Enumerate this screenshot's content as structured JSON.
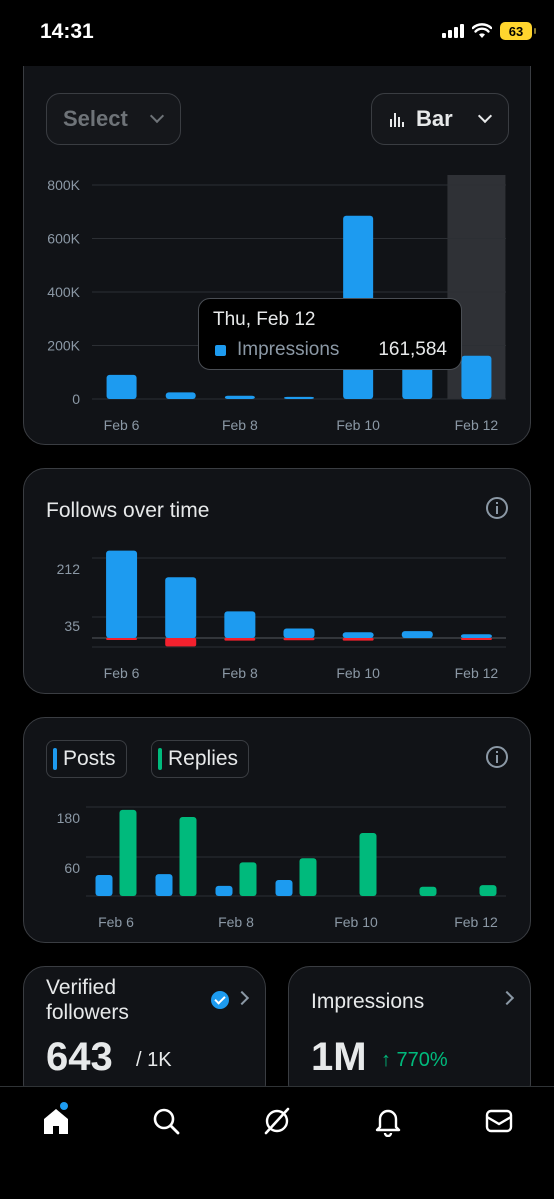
{
  "status_bar": {
    "time": "14:31",
    "battery": "63"
  },
  "impressions_card": {
    "select_label": "Select",
    "chart_type_label": "Bar",
    "tooltip": {
      "date": "Thu, Feb 12",
      "label": "Impressions",
      "value": "161,584"
    }
  },
  "follows_card": {
    "title": "Follows over time"
  },
  "posts_card": {
    "legend_posts": "Posts",
    "legend_replies": "Replies"
  },
  "verified_card": {
    "title": "Verified followers",
    "value": "643",
    "of": "/ 1K"
  },
  "impressions_stat": {
    "title": "Impressions",
    "value": "1M",
    "delta": "↑ 770%"
  },
  "colors": {
    "blue": "#1d9bf0",
    "green": "#00ba7c",
    "red": "#f4212e"
  },
  "chart_data": [
    {
      "type": "bar",
      "categories": [
        "Feb 6",
        "Feb 7",
        "Feb 8",
        "Feb 9",
        "Feb 10",
        "Feb 11",
        "Feb 12"
      ],
      "x_tick_labels": [
        "Feb 6",
        "Feb 8",
        "Feb 10",
        "Feb 12"
      ],
      "y_tick_labels": [
        "800K",
        "600K",
        "400K",
        "200K",
        "0"
      ],
      "series": [
        {
          "name": "Impressions",
          "values": [
            90000,
            25000,
            12000,
            8000,
            685000,
            165000,
            161584
          ]
        }
      ],
      "ylim": [
        0,
        800000
      ],
      "highlighted_category": "Feb 12"
    },
    {
      "type": "bar",
      "categories": [
        "Feb 6",
        "Feb 7",
        "Feb 8",
        "Feb 9",
        "Feb 10",
        "Feb 11",
        "Feb 12"
      ],
      "x_tick_labels": [
        "Feb 6",
        "Feb 8",
        "Feb 10",
        "Feb 12"
      ],
      "y_tick_labels": [
        "212",
        "35"
      ],
      "series": [
        {
          "values": [
            230,
            160,
            70,
            25,
            15,
            18,
            10
          ]
        },
        {
          "values": [
            -5,
            -22,
            -7,
            -6,
            -7,
            0,
            -4
          ]
        }
      ]
    },
    {
      "type": "bar",
      "categories": [
        "Feb 6",
        "Feb 7",
        "Feb 8",
        "Feb 9",
        "Feb 10",
        "Feb 11",
        "Feb 12"
      ],
      "x_tick_labels": [
        "Feb 6",
        "Feb 8",
        "Feb 10",
        "Feb 12"
      ],
      "y_tick_labels": [
        "180",
        "60"
      ],
      "series": [
        {
          "name": "Posts",
          "values": [
            50,
            52,
            24,
            38,
            0,
            0,
            0
          ]
        },
        {
          "name": "Replies",
          "values": [
            205,
            188,
            80,
            90,
            150,
            22,
            26
          ]
        }
      ]
    }
  ]
}
